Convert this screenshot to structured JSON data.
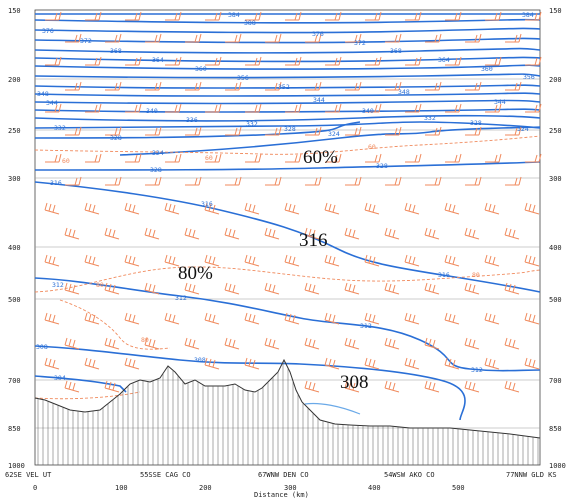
{
  "panel": {
    "pressure_levels_left": [
      "150",
      "200",
      "250",
      "300",
      "400",
      "500",
      "700",
      "850",
      "1000"
    ],
    "pressure_levels_right": [
      "150",
      "200",
      "250",
      "300",
      "400",
      "500",
      "700",
      "850",
      "1000"
    ],
    "x_ticks": [
      "0",
      "100",
      "200",
      "300",
      "400",
      "500"
    ],
    "x_axis_label": "Distance (km)",
    "locations": [
      "62SE VEL UT",
      "55SSE CAG CO",
      "67WNW DEN CO",
      "54WSW AKO CO",
      "77NNW GLD KS"
    ]
  },
  "annotations": {
    "rh60": "60%",
    "rh80": "80%",
    "theta316": "316",
    "theta308": "308",
    "rh60_small": "60",
    "rh80_small": "80"
  },
  "isentrope_labels": [
    "384",
    "388",
    "376",
    "372",
    "368",
    "364",
    "360",
    "356",
    "352",
    "348",
    "344",
    "340",
    "336",
    "332",
    "328",
    "324",
    "320",
    "316",
    "312",
    "308",
    "304"
  ],
  "colors": {
    "isentrope": "#2a6fd6",
    "wind_barb": "#f08a5d",
    "rh_contour": "#f08a5d",
    "terrain": "#333333",
    "grid": "#999999",
    "cyan_line": "#6aa9e8"
  }
}
